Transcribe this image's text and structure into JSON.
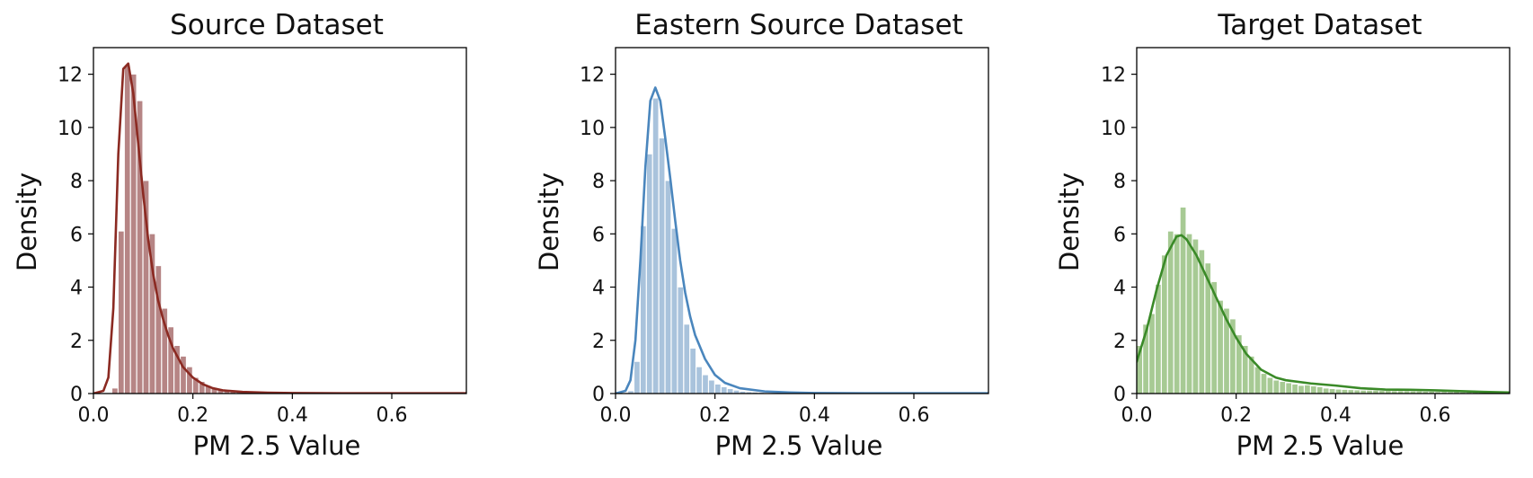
{
  "chart_data": [
    {
      "type": "histogram",
      "title": "Source Dataset",
      "xlabel": "PM 2.5 Value",
      "ylabel": "Density",
      "xlim": [
        0.0,
        0.75
      ],
      "ylim": [
        0,
        13
      ],
      "xticks": [
        0.0,
        0.2,
        0.4,
        0.6
      ],
      "xtick_labels": [
        "0.0",
        "0.2",
        "0.4",
        "0.6"
      ],
      "yticks": [
        0,
        2,
        4,
        6,
        8,
        10,
        12
      ],
      "ytick_labels": [
        "0",
        "2",
        "4",
        "6",
        "8",
        "10",
        "12"
      ],
      "color_bar": "#b68585",
      "color_line": "#8b2a22",
      "bin_width": 0.0125,
      "bins_start": 0.0,
      "hist_values": [
        0,
        0,
        0,
        0.2,
        6.1,
        12.3,
        12.0,
        11.0,
        8.0,
        6.0,
        4.8,
        3.2,
        2.5,
        1.8,
        1.4,
        1.0,
        0.6,
        0.45,
        0.3,
        0.22,
        0.15,
        0.1,
        0.07,
        0.05,
        0.04,
        0.03,
        0.02,
        0.02,
        0.02,
        0.01,
        0.01,
        0.01,
        0.01,
        0.01,
        0.01,
        0.01,
        0.01,
        0.01,
        0.01,
        0.01,
        0.01,
        0.01,
        0.01,
        0.01,
        0.01,
        0.01,
        0.01,
        0.01,
        0.01,
        0.01,
        0.01,
        0.01,
        0.01,
        0.01,
        0.01,
        0.01,
        0.01,
        0.01,
        0.01,
        0.01
      ],
      "kde": {
        "x": [
          0.0,
          0.02,
          0.03,
          0.04,
          0.05,
          0.06,
          0.07,
          0.08,
          0.09,
          0.1,
          0.11,
          0.12,
          0.13,
          0.14,
          0.15,
          0.16,
          0.18,
          0.2,
          0.22,
          0.24,
          0.26,
          0.3,
          0.35,
          0.4,
          0.5,
          0.6,
          0.75
        ],
        "y": [
          0.0,
          0.1,
          0.6,
          3.2,
          9.0,
          12.2,
          12.4,
          11.3,
          9.4,
          7.5,
          5.8,
          4.5,
          3.5,
          2.8,
          2.2,
          1.7,
          1.0,
          0.6,
          0.35,
          0.2,
          0.12,
          0.06,
          0.03,
          0.02,
          0.01,
          0.01,
          0.01
        ]
      }
    },
    {
      "type": "histogram",
      "title": "Eastern Source Dataset",
      "xlabel": "PM 2.5 Value",
      "ylabel": "Density",
      "xlim": [
        0.0,
        0.75
      ],
      "ylim": [
        0,
        13
      ],
      "xticks": [
        0.0,
        0.2,
        0.4,
        0.6
      ],
      "xtick_labels": [
        "0.0",
        "0.2",
        "0.4",
        "0.6"
      ],
      "yticks": [
        0,
        2,
        4,
        6,
        8,
        10,
        12
      ],
      "ytick_labels": [
        "0",
        "2",
        "4",
        "6",
        "8",
        "10",
        "12"
      ],
      "color_bar": "#a9c3dc",
      "color_line": "#4a86bd",
      "bin_width": 0.0125,
      "bins_start": 0.0,
      "hist_values": [
        0,
        0,
        0.1,
        1.2,
        6.3,
        9.0,
        11.1,
        9.6,
        8.0,
        6.2,
        4.0,
        2.6,
        1.7,
        1.0,
        0.7,
        0.5,
        0.35,
        0.25,
        0.18,
        0.12,
        0.08,
        0.06,
        0.05,
        0.04,
        0.03,
        0.03,
        0.02,
        0.02,
        0.02,
        0.01,
        0.01,
        0.01,
        0.01,
        0.01,
        0.01,
        0.01,
        0.01,
        0.01,
        0.01,
        0.01,
        0.01,
        0.01,
        0.01,
        0.01,
        0.01,
        0.01,
        0.01,
        0.01,
        0.01,
        0.01,
        0.01,
        0.01,
        0.01,
        0.01,
        0.01,
        0.01,
        0.01,
        0.01,
        0.01,
        0.01
      ],
      "kde": {
        "x": [
          0.0,
          0.02,
          0.03,
          0.04,
          0.05,
          0.06,
          0.07,
          0.08,
          0.09,
          0.1,
          0.11,
          0.12,
          0.13,
          0.14,
          0.15,
          0.16,
          0.18,
          0.2,
          0.22,
          0.25,
          0.3,
          0.35,
          0.4,
          0.5,
          0.6,
          0.75
        ],
        "y": [
          0.0,
          0.1,
          0.5,
          2.0,
          5.0,
          8.5,
          11.0,
          11.5,
          11.0,
          9.6,
          8.1,
          6.5,
          5.0,
          3.8,
          2.9,
          2.2,
          1.3,
          0.7,
          0.4,
          0.2,
          0.08,
          0.04,
          0.02,
          0.01,
          0.01,
          0.01
        ]
      }
    },
    {
      "type": "histogram",
      "title": "Target Dataset",
      "xlabel": "PM 2.5 Value",
      "ylabel": "Density",
      "xlim": [
        0.0,
        0.75
      ],
      "ylim": [
        0,
        13
      ],
      "xticks": [
        0.0,
        0.2,
        0.4,
        0.6
      ],
      "xtick_labels": [
        "0.0",
        "0.2",
        "0.4",
        "0.6"
      ],
      "yticks": [
        0,
        2,
        4,
        6,
        8,
        10,
        12
      ],
      "ytick_labels": [
        "0",
        "2",
        "4",
        "6",
        "8",
        "10",
        "12"
      ],
      "color_bar": "#a7ca94",
      "color_line": "#3a8a28",
      "bin_width": 0.0125,
      "bins_start": 0.0,
      "hist_values": [
        1.8,
        2.6,
        3.0,
        4.1,
        5.2,
        6.1,
        6.0,
        7.0,
        6.0,
        5.8,
        5.4,
        4.9,
        4.2,
        3.5,
        3.2,
        2.8,
        2.2,
        1.8,
        1.4,
        1.0,
        0.75,
        0.6,
        0.5,
        0.45,
        0.4,
        0.35,
        0.3,
        0.32,
        0.28,
        0.25,
        0.2,
        0.18,
        0.16,
        0.15,
        0.14,
        0.13,
        0.12,
        0.12,
        0.12,
        0.11,
        0.11,
        0.1,
        0.1,
        0.1,
        0.09,
        0.09,
        0.08,
        0.08,
        0.07,
        0.07,
        0.06,
        0.06,
        0.05,
        0.05,
        0.05,
        0.04,
        0.04,
        0.04,
        0.03,
        0.03
      ],
      "kde": {
        "x": [
          0.0,
          0.02,
          0.04,
          0.06,
          0.08,
          0.09,
          0.1,
          0.12,
          0.14,
          0.16,
          0.18,
          0.2,
          0.22,
          0.25,
          0.28,
          0.3,
          0.35,
          0.4,
          0.45,
          0.5,
          0.55,
          0.6,
          0.65,
          0.7,
          0.75
        ],
        "y": [
          1.2,
          2.4,
          3.9,
          5.2,
          5.9,
          5.95,
          5.8,
          5.2,
          4.4,
          3.6,
          2.8,
          2.1,
          1.5,
          0.9,
          0.6,
          0.5,
          0.38,
          0.3,
          0.2,
          0.15,
          0.14,
          0.12,
          0.09,
          0.06,
          0.04
        ]
      }
    }
  ]
}
